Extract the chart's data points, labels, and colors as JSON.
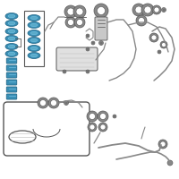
{
  "bg_color": "#ffffff",
  "teal": "#3a8fb5",
  "dark_teal": "#1a5f80",
  "teal_mid": "#5aaac8",
  "gray": "#888888",
  "light_gray": "#bbbbbb",
  "dark_gray": "#555555",
  "figsize": [
    2.0,
    2.0
  ],
  "dpi": 100
}
